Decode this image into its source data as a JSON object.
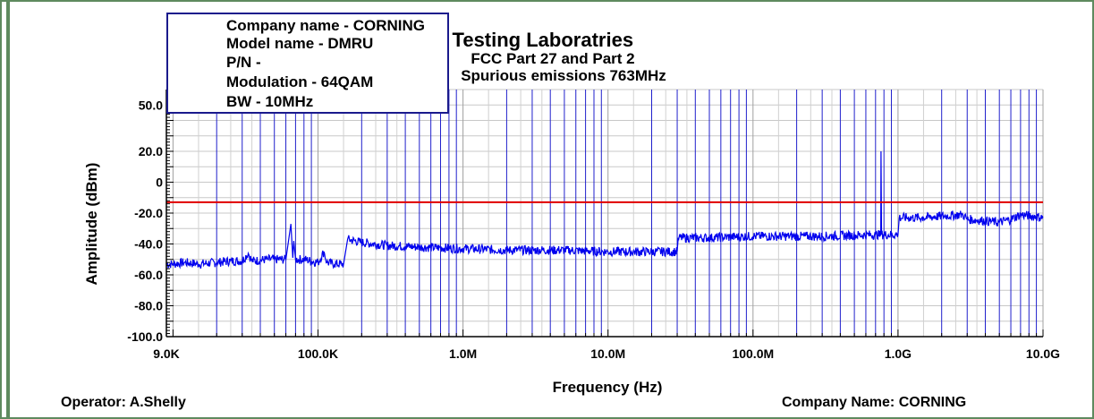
{
  "chart_data": {
    "type": "line",
    "title": "Israel Testing Laboratries",
    "subtitle_lines": [
      "FCC Part 27 and Part 2",
      "Spurious emissions 763MHz"
    ],
    "xlabel": "Frequency (Hz)",
    "ylabel": "Amplitude (dBm)",
    "x_scale": "log",
    "xlim": [
      9000,
      10000000000
    ],
    "ylim": [
      -100,
      60
    ],
    "x_tick_labels": [
      "9.0K",
      "100.0K",
      "1.0M",
      "10.0M",
      "100.0M",
      "1.0G",
      "10.0G"
    ],
    "x_tick_values": [
      9000,
      100000,
      1000000,
      10000000,
      100000000,
      1000000000,
      10000000000
    ],
    "y_tick_labels": [
      "50.0",
      "20.0",
      "0",
      "-20.0",
      "-40.0",
      "-60.0",
      "-80.0",
      "-100.0"
    ],
    "y_tick_values": [
      50,
      20,
      0,
      -20,
      -40,
      -60,
      -80,
      -100
    ],
    "grid": true,
    "limit_line": {
      "value": -13,
      "color": "#e00000"
    },
    "series": [
      {
        "color": "#0000ee",
        "points": [
          [
            9000,
            -53
          ],
          [
            10000,
            -53
          ],
          [
            12000,
            -52
          ],
          [
            15000,
            -53
          ],
          [
            20000,
            -52
          ],
          [
            25000,
            -51
          ],
          [
            30000,
            -51
          ],
          [
            33000,
            -46
          ],
          [
            35000,
            -51
          ],
          [
            45000,
            -50
          ],
          [
            50000,
            -50
          ],
          [
            60000,
            -50
          ],
          [
            65000,
            -27
          ],
          [
            67000,
            -49
          ],
          [
            68000,
            -38
          ],
          [
            70000,
            -50
          ],
          [
            80000,
            -50
          ],
          [
            100000,
            -52
          ],
          [
            110000,
            -45
          ],
          [
            115000,
            -52
          ],
          [
            130000,
            -53
          ],
          [
            150000,
            -53
          ],
          [
            160000,
            -37
          ],
          [
            200000,
            -39
          ],
          [
            300000,
            -41
          ],
          [
            500000,
            -42
          ],
          [
            1000000,
            -43
          ],
          [
            2000000,
            -44
          ],
          [
            5000000,
            -44
          ],
          [
            10000000,
            -45
          ],
          [
            20000000,
            -45
          ],
          [
            30000000,
            -45
          ],
          [
            30500000,
            -36
          ],
          [
            50000000,
            -36
          ],
          [
            100000000,
            -35
          ],
          [
            300000000,
            -35
          ],
          [
            700000000,
            -34
          ],
          [
            760000000,
            -34
          ],
          [
            763000000,
            20
          ],
          [
            770000000,
            -34
          ],
          [
            1000000000,
            -34
          ],
          [
            1020000000,
            -23
          ],
          [
            1500000000,
            -23
          ],
          [
            2000000000,
            -22
          ],
          [
            2800000000,
            -21
          ],
          [
            3000000000,
            -24
          ],
          [
            4000000000,
            -25
          ],
          [
            5000000000,
            -26
          ],
          [
            6000000000,
            -24
          ],
          [
            7000000000,
            -21
          ],
          [
            10000000000,
            -23
          ]
        ]
      }
    ]
  },
  "legend_box": {
    "lines": [
      "Company name - CORNING",
      "Model name - DMRU",
      "P/N -",
      "Modulation - 64QAM",
      "BW - 10MHz"
    ]
  },
  "footer": {
    "operator": "Operator: A.Shelly",
    "company": "Company  Name: CORNING"
  },
  "colors": {
    "frame": "#5f8a5f",
    "trace": "#0000ee",
    "grid": "#2020cc",
    "limit": "#e00000"
  }
}
